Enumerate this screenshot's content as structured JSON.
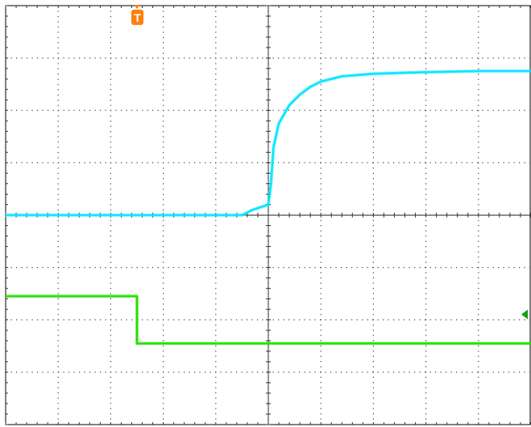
{
  "chart_data": {
    "type": "line",
    "title": "",
    "xlabel": "",
    "ylabel": "",
    "grid": true,
    "divisions": {
      "x": 10,
      "y": 8
    },
    "xlim": [
      0,
      10
    ],
    "ylim": [
      -4,
      4
    ],
    "series": [
      {
        "trace": "ch1",
        "color": "#00e5ff",
        "x": [
          0,
          4.5,
          4.7,
          5.0,
          5.05,
          5.1,
          5.2,
          5.4,
          5.6,
          5.8,
          6.0,
          6.4,
          7.0,
          8.0,
          9.0,
          10.0
        ],
        "y": [
          0,
          0,
          0.1,
          0.2,
          0.6,
          1.3,
          1.75,
          2.1,
          2.3,
          2.45,
          2.55,
          2.65,
          2.7,
          2.73,
          2.75,
          2.75
        ]
      },
      {
        "trace": "ch2",
        "color": "#22e000",
        "x": [
          0,
          2.5,
          2.5,
          10.0
        ],
        "y": [
          -1.55,
          -1.55,
          -2.45,
          -2.45
        ]
      }
    ]
  },
  "markers": {
    "trigger_label": "T",
    "trigger_color": "#ff7f0e",
    "level_color": "#1a9e1a"
  }
}
